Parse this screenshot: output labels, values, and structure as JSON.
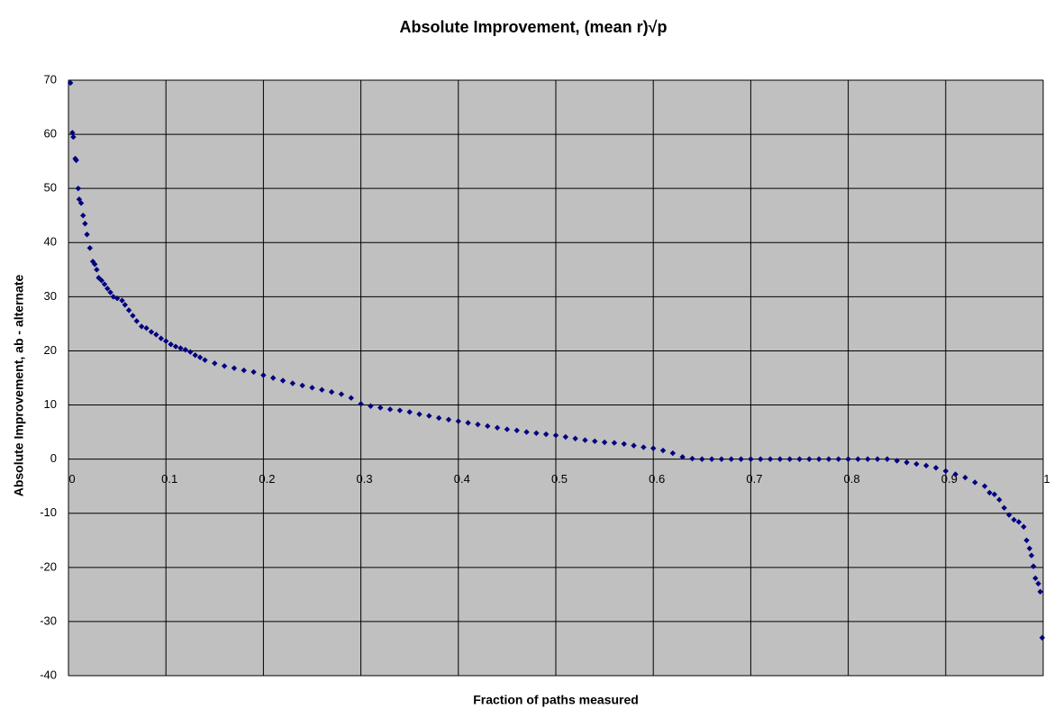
{
  "chart_data": {
    "type": "scatter",
    "title": "Absolute Improvement, (mean r)√p",
    "x_label": "Fraction of paths measured",
    "y_label": "Absolute Improvement, ab - alternate",
    "color": "#000080",
    "background": "#c0c0c0",
    "grid": true,
    "xlim": [
      0,
      1
    ],
    "ylim": [
      -40,
      70
    ],
    "xticks": [
      0,
      0.1,
      0.2,
      0.3,
      0.4,
      0.5,
      0.6,
      0.7,
      0.8,
      0.9,
      1
    ],
    "yticks": [
      -40,
      -30,
      -20,
      -10,
      0,
      10,
      20,
      30,
      40,
      50,
      60,
      70
    ],
    "x": [
      0.002,
      0.004,
      0.005,
      0.007,
      0.008,
      0.01,
      0.011,
      0.013,
      0.015,
      0.017,
      0.019,
      0.022,
      0.025,
      0.027,
      0.029,
      0.031,
      0.034,
      0.037,
      0.04,
      0.043,
      0.046,
      0.05,
      0.055,
      0.058,
      0.062,
      0.066,
      0.07,
      0.075,
      0.08,
      0.085,
      0.09,
      0.095,
      0.1,
      0.105,
      0.11,
      0.115,
      0.12,
      0.125,
      0.13,
      0.135,
      0.14,
      0.15,
      0.16,
      0.17,
      0.18,
      0.19,
      0.2,
      0.21,
      0.22,
      0.23,
      0.24,
      0.25,
      0.26,
      0.27,
      0.28,
      0.29,
      0.3,
      0.31,
      0.32,
      0.33,
      0.34,
      0.35,
      0.36,
      0.37,
      0.38,
      0.39,
      0.4,
      0.41,
      0.42,
      0.43,
      0.44,
      0.45,
      0.46,
      0.47,
      0.48,
      0.49,
      0.5,
      0.51,
      0.52,
      0.53,
      0.54,
      0.55,
      0.56,
      0.57,
      0.58,
      0.59,
      0.6,
      0.61,
      0.62,
      0.63,
      0.64,
      0.65,
      0.66,
      0.67,
      0.68,
      0.69,
      0.7,
      0.71,
      0.72,
      0.73,
      0.74,
      0.75,
      0.76,
      0.77,
      0.78,
      0.79,
      0.8,
      0.81,
      0.82,
      0.83,
      0.84,
      0.85,
      0.86,
      0.87,
      0.88,
      0.89,
      0.9,
      0.91,
      0.92,
      0.93,
      0.94,
      0.945,
      0.95,
      0.955,
      0.96,
      0.965,
      0.97,
      0.975,
      0.98,
      0.983,
      0.986,
      0.988,
      0.99,
      0.992,
      0.995,
      0.997,
      0.999
    ],
    "y": [
      69.5,
      60.3,
      59.5,
      55.5,
      55.2,
      50.0,
      48,
      47.3,
      45,
      43.5,
      41.5,
      39,
      36.5,
      36,
      35,
      33.5,
      33,
      32.3,
      31.5,
      30.8,
      30,
      29.7,
      29.3,
      28.5,
      27.5,
      26.5,
      25.5,
      24.5,
      24.2,
      23.5,
      23,
      22.3,
      21.8,
      21.2,
      20.8,
      20.5,
      20.2,
      19.8,
      19.2,
      18.8,
      18.3,
      17.7,
      17.2,
      16.8,
      16.4,
      16.1,
      15.5,
      15.0,
      14.5,
      14.0,
      13.6,
      13.2,
      12.8,
      12.4,
      12.0,
      11.3,
      10.2,
      9.8,
      9.5,
      9.2,
      9.0,
      8.7,
      8.3,
      8.0,
      7.6,
      7.3,
      7.0,
      6.7,
      6.4,
      6.1,
      5.8,
      5.5,
      5.3,
      5.0,
      4.8,
      4.6,
      4.4,
      4.1,
      3.8,
      3.5,
      3.3,
      3.1,
      3.0,
      2.8,
      2.5,
      2.2,
      2.0,
      1.6,
      1.1,
      0.4,
      0.1,
      0,
      0,
      0,
      0,
      0,
      0,
      0,
      0,
      0,
      0,
      0,
      0,
      0,
      0,
      0,
      0,
      0,
      0,
      0,
      0,
      -0.3,
      -0.6,
      -0.9,
      -1.2,
      -1.6,
      -2.2,
      -2.8,
      -3.4,
      -4.3,
      -5.0,
      -6.2,
      -6.5,
      -7.5,
      -9.0,
      -10.3,
      -11.2,
      -11.6,
      -12.5,
      -15,
      -16.5,
      -17.8,
      -19.8,
      -22,
      -23,
      -24.5,
      -33
    ]
  }
}
